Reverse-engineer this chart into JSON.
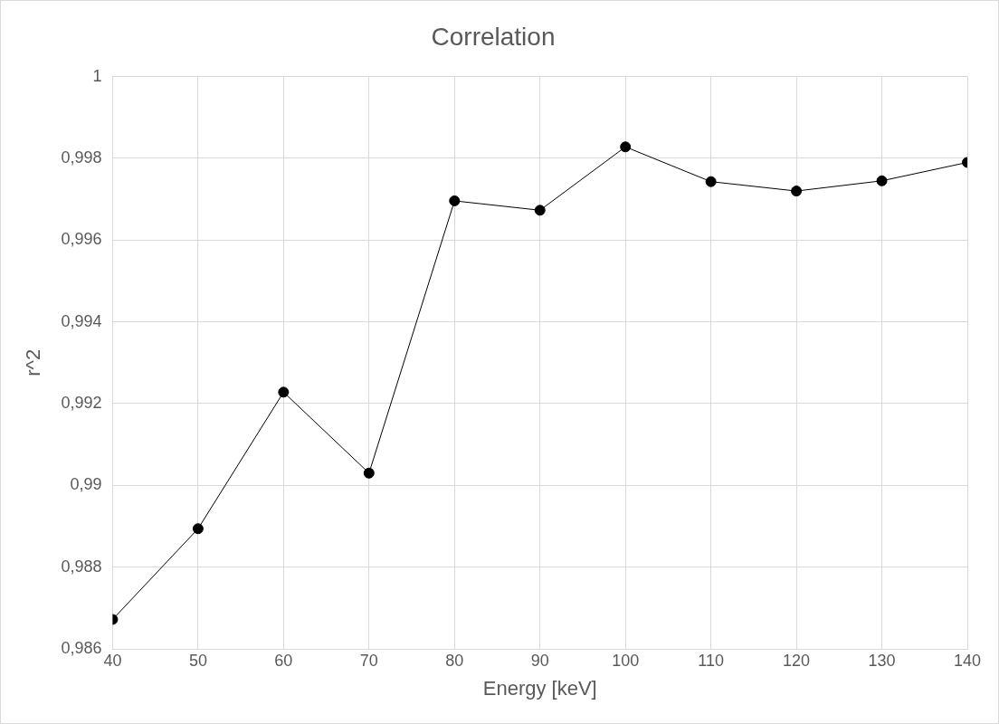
{
  "chart_data": {
    "type": "line",
    "title": "Correlation",
    "xlabel": "Energy [keV]",
    "ylabel": "r^2",
    "x": [
      40,
      50,
      60,
      70,
      80,
      90,
      100,
      110,
      120,
      130,
      140
    ],
    "series": [
      {
        "color": "#000000",
        "values": [
          0.98672,
          0.98894,
          0.99228,
          0.9903,
          0.99696,
          0.99673,
          0.99828,
          0.99743,
          0.9972,
          0.99745,
          0.9979
        ]
      }
    ],
    "xlim": [
      40,
      140
    ],
    "xticks": [
      40,
      50,
      60,
      70,
      80,
      90,
      100,
      110,
      120,
      130,
      140
    ],
    "ylim": [
      0.986,
      1
    ],
    "yticks": [
      {
        "value": 0.986,
        "label": "0,986"
      },
      {
        "value": 0.988,
        "label": "0,988"
      },
      {
        "value": 0.99,
        "label": "0,99"
      },
      {
        "value": 0.992,
        "label": "0,992"
      },
      {
        "value": 0.994,
        "label": "0,994"
      },
      {
        "value": 0.996,
        "label": "0,996"
      },
      {
        "value": 0.998,
        "label": "0,998"
      },
      {
        "value": 1,
        "label": "1"
      }
    ],
    "grid": true,
    "legend": false,
    "marker": "circle",
    "line_style": "solid"
  }
}
